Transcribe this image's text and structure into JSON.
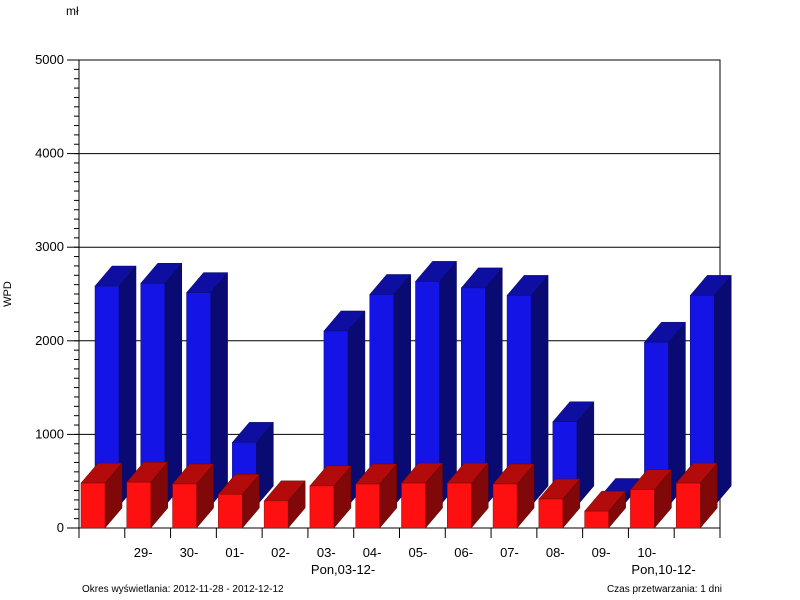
{
  "chart_data": {
    "type": "bar",
    "unit_label": "mł",
    "ylabel": "WPD",
    "ylim": [
      0,
      5000
    ],
    "y_ticks": [
      "5000",
      "4000",
      "3000",
      "2000",
      "1000",
      "0"
    ],
    "grid": true,
    "categories": [
      [
        "",
        ""
      ],
      [
        "29-",
        ""
      ],
      [
        "30-",
        ""
      ],
      [
        "01-",
        ""
      ],
      [
        "02-",
        ""
      ],
      [
        "03-",
        "Pon,03-12-"
      ],
      [
        "04-",
        ""
      ],
      [
        "05-",
        ""
      ],
      [
        "06-",
        ""
      ],
      [
        "07-",
        ""
      ],
      [
        "08-",
        ""
      ],
      [
        "09-",
        ""
      ],
      [
        "10-",
        "Pon,10-12-"
      ],
      [
        "",
        ""
      ]
    ],
    "series": [
      {
        "color": "#1414e6",
        "values": [
          2350,
          2380,
          2280,
          680,
          0,
          1870,
          2260,
          2400,
          2330,
          2250,
          900,
          80,
          1750,
          2250
        ]
      },
      {
        "color": "#ff1010",
        "values": [
          480,
          490,
          470,
          360,
          290,
          450,
          470,
          480,
          480,
          470,
          310,
          180,
          410,
          480
        ]
      }
    ]
  },
  "footer": {
    "left": "Okres wyświetlania: 2012-11-28 - 2012-12-12",
    "right": "Czas przetwarzania: 1 dni"
  }
}
